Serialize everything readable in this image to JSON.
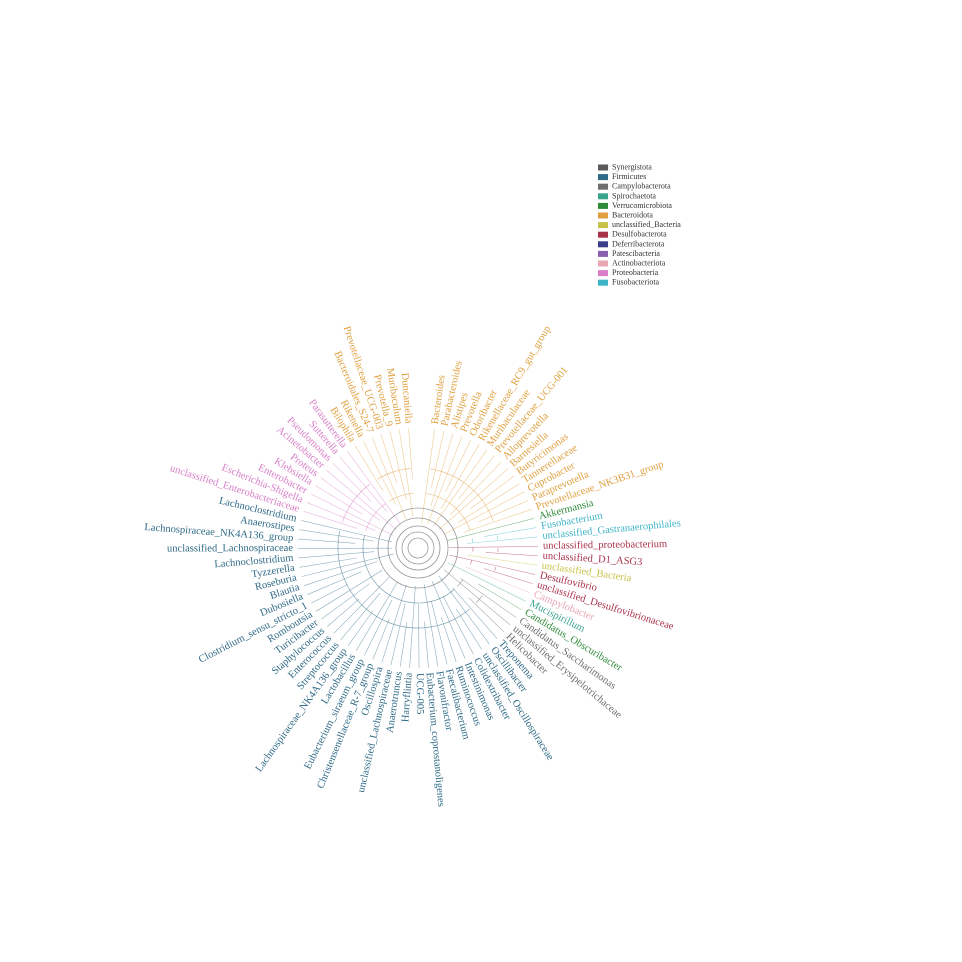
{
  "legend": [
    {
      "name": "Synergistota",
      "color": "#5a5a5a"
    },
    {
      "name": "Firmicutes",
      "color": "#2f6a86"
    },
    {
      "name": "Campylobacterota",
      "color": "#6e6e6e"
    },
    {
      "name": "Spirochaetota",
      "color": "#3aa58d"
    },
    {
      "name": "Verrucomicrobiota",
      "color": "#2f8a3a"
    },
    {
      "name": "Bacteroidota",
      "color": "#e0a040"
    },
    {
      "name": "unclassified_Bacteria",
      "color": "#c9c24a"
    },
    {
      "name": "Desulfobacterota",
      "color": "#a8324a"
    },
    {
      "name": "Deferribacterota",
      "color": "#3b3f8a"
    },
    {
      "name": "Patescibacteria",
      "color": "#8a5fb0"
    },
    {
      "name": "Actinobacteriota",
      "color": "#e8a7b3"
    },
    {
      "name": "Proteobacteria",
      "color": "#d97fc7"
    },
    {
      "name": "Fusobacteriota",
      "color": "#3db5c7"
    }
  ],
  "tips": [
    {
      "label": "Bacteroides",
      "phylum": 5
    },
    {
      "label": "Parabacteroides",
      "phylum": 5
    },
    {
      "label": "Alistipes",
      "phylum": 5
    },
    {
      "label": "Prevotella",
      "phylum": 5
    },
    {
      "label": "Odoribacter",
      "phylum": 5
    },
    {
      "label": "Rikenellaceae_RC9_gut_group",
      "phylum": 5
    },
    {
      "label": "Muribaculaceae",
      "phylum": 5
    },
    {
      "label": "Prevotellaceae_UCG-001",
      "phylum": 5
    },
    {
      "label": "Alloprevotella",
      "phylum": 5
    },
    {
      "label": "Barnesiella",
      "phylum": 5
    },
    {
      "label": "Butyricimonas",
      "phylum": 5
    },
    {
      "label": "Tannerellaceae",
      "phylum": 5
    },
    {
      "label": "Coprobacter",
      "phylum": 5
    },
    {
      "label": "Paraprevotella",
      "phylum": 5
    },
    {
      "label": "Prevotellaceae_NK3B31_group",
      "phylum": 5
    },
    {
      "label": "Akkermansia",
      "phylum": 4
    },
    {
      "label": "Fusobacterium",
      "phylum": 12
    },
    {
      "label": "unclassified_Gastranaerophilales",
      "phylum": 12
    },
    {
      "label": "unclassified_proteobacterium",
      "phylum": 7
    },
    {
      "label": "unclassified_D1_ASG3",
      "phylum": 7
    },
    {
      "label": "unclassified_Bacteria",
      "phylum": 6
    },
    {
      "label": "Desulfovibrio",
      "phylum": 7
    },
    {
      "label": "unclassified_Desulfovibrionaceae",
      "phylum": 7
    },
    {
      "label": "Campylobacter",
      "phylum": 10
    },
    {
      "label": "Mucispirillum",
      "phylum": 3
    },
    {
      "label": "Candidatus_Obscuribacter",
      "phylum": 4
    },
    {
      "label": "Candidatus_Saccharimonas",
      "phylum": 2
    },
    {
      "label": "unclassified_Erysipelotrichaceae",
      "phylum": 2
    },
    {
      "label": "Helicobacter",
      "phylum": 2
    },
    {
      "label": "Treponema",
      "phylum": 1
    },
    {
      "label": "Oscillibacter",
      "phylum": 1
    },
    {
      "label": "unclassified_Oscillospiraceae",
      "phylum": 1
    },
    {
      "label": "Colidextribacter",
      "phylum": 1
    },
    {
      "label": "Intestinimonas",
      "phylum": 1
    },
    {
      "label": "Ruminococcus",
      "phylum": 1
    },
    {
      "label": "Faecalibacterium",
      "phylum": 1
    },
    {
      "label": "Flavonifractor",
      "phylum": 1
    },
    {
      "label": "Eubacterium_coprostanoligenes",
      "phylum": 1
    },
    {
      "label": "UCG-005",
      "phylum": 1
    },
    {
      "label": "Harryflintia",
      "phylum": 1
    },
    {
      "label": "Anaerotruncus",
      "phylum": 1
    },
    {
      "label": "unclassified_Lachnospiraceae",
      "phylum": 1
    },
    {
      "label": "Oscillospira",
      "phylum": 1
    },
    {
      "label": "Christensenellaceae_R-7_group",
      "phylum": 1
    },
    {
      "label": "Eubacterium_siraeum_group",
      "phylum": 1
    },
    {
      "label": "Lactobacillus",
      "phylum": 1
    },
    {
      "label": "Lachnospiraceae_NK4A136_group",
      "phylum": 1
    },
    {
      "label": "Streptococcus",
      "phylum": 1
    },
    {
      "label": "Enterococcus",
      "phylum": 1
    },
    {
      "label": "Staphylococcus",
      "phylum": 1
    },
    {
      "label": "Turicibacter",
      "phylum": 1
    },
    {
      "label": "Romboutsia",
      "phylum": 1
    },
    {
      "label": "Clostridium_sensu_stricto_1",
      "phylum": 1
    },
    {
      "label": "Dubosiella",
      "phylum": 1
    },
    {
      "label": "Blautia",
      "phylum": 1
    },
    {
      "label": "Roseburia",
      "phylum": 1
    },
    {
      "label": "Tyzzerella",
      "phylum": 1
    },
    {
      "label": "Lachnoclostridium",
      "phylum": 1
    },
    {
      "label": "unclassified_Lachnospiraceae",
      "phylum": 1
    },
    {
      "label": "Lachnospiraceae_NK4A136_group",
      "phylum": 1
    },
    {
      "label": "Anaerostipes",
      "phylum": 1
    },
    {
      "label": "Lachnoclostridium",
      "phylum": 1
    },
    {
      "label": "unclassified_Enterobacteriaceae",
      "phylum": 11
    },
    {
      "label": "Escherichia-Shigella",
      "phylum": 11
    },
    {
      "label": "Enterobacter",
      "phylum": 11
    },
    {
      "label": "Klebsiella",
      "phylum": 11
    },
    {
      "label": "Proteus",
      "phylum": 11
    },
    {
      "label": "Acinetobacter",
      "phylum": 11
    },
    {
      "label": "Pseudomonas",
      "phylum": 11
    },
    {
      "label": "Sutterella",
      "phylum": 11
    },
    {
      "label": "Parasutterella",
      "phylum": 11
    },
    {
      "label": "Bilophila",
      "phylum": 5
    },
    {
      "label": "Rikenella",
      "phylum": 5
    },
    {
      "label": "Bacteroidales_S24-7",
      "phylum": 5
    },
    {
      "label": "Prevotellaceae_UCG-003",
      "phylum": 5
    },
    {
      "label": "Prevotella_9",
      "phylum": 5
    },
    {
      "label": "Muribaculum",
      "phylum": 5
    },
    {
      "label": "Duncaniella",
      "phylum": 5
    }
  ]
}
